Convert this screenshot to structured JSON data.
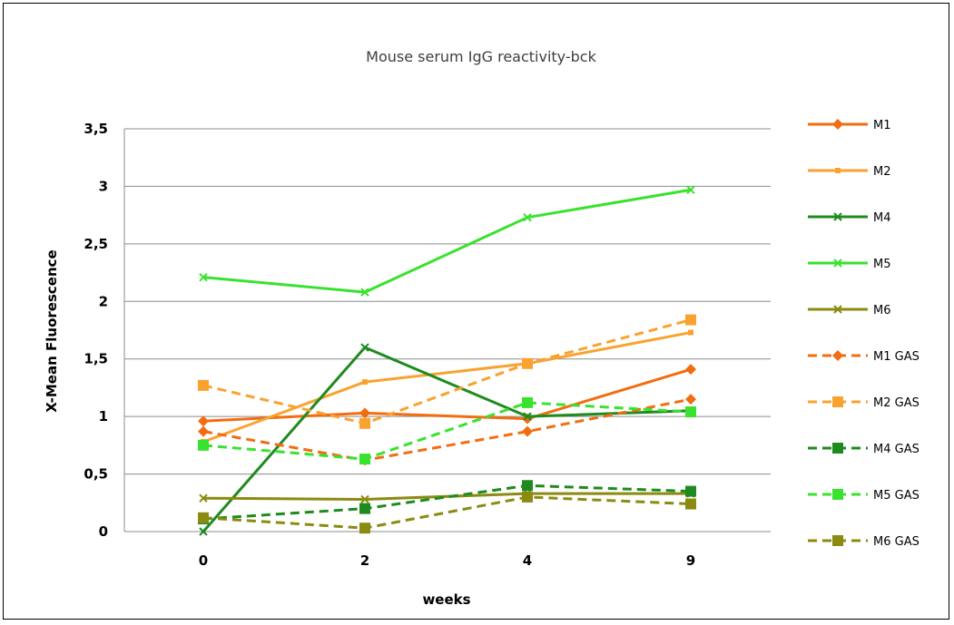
{
  "chart_data": {
    "type": "line",
    "title": "Mouse serum IgG reactivity-bck",
    "xlabel": "weeks",
    "ylabel": "X-Mean Fluorescence",
    "categories": [
      "0",
      "2",
      "4",
      "9"
    ],
    "ylim": [
      0,
      3.5
    ],
    "yticks": [
      "0",
      "0,5",
      "1",
      "1,5",
      "2",
      "2,5",
      "3",
      "3,5"
    ],
    "grid": true,
    "legend": "right",
    "series": [
      {
        "name": "M1",
        "values": [
          0.96,
          1.03,
          0.98,
          1.41
        ],
        "color": "#F26D12",
        "dash": "solid",
        "marker": "diamond"
      },
      {
        "name": "M2",
        "values": [
          0.78,
          1.3,
          1.46,
          1.73
        ],
        "color": "#F9A230",
        "dash": "solid",
        "marker": "square-small"
      },
      {
        "name": "M4",
        "values": [
          0.0,
          1.6,
          1.0,
          1.05
        ],
        "color": "#1E8B1E",
        "dash": "solid",
        "marker": "x"
      },
      {
        "name": "M5",
        "values": [
          2.21,
          2.08,
          2.73,
          2.97
        ],
        "color": "#39E22E",
        "dash": "solid",
        "marker": "x"
      },
      {
        "name": "M6",
        "values": [
          0.29,
          0.28,
          0.33,
          0.33
        ],
        "color": "#8B8B12",
        "dash": "solid",
        "marker": "x"
      },
      {
        "name": "M1 GAS",
        "values": [
          0.87,
          0.62,
          0.87,
          1.15
        ],
        "color": "#F26D12",
        "dash": "dashed",
        "marker": "diamond"
      },
      {
        "name": "M2 GAS",
        "values": [
          1.27,
          0.94,
          1.46,
          1.84
        ],
        "color": "#F9A230",
        "dash": "dashed",
        "marker": "square"
      },
      {
        "name": "M4 GAS",
        "values": [
          0.11,
          0.2,
          0.4,
          0.35
        ],
        "color": "#1E8B1E",
        "dash": "dashed",
        "marker": "square"
      },
      {
        "name": "M5 GAS",
        "values": [
          0.75,
          0.63,
          1.12,
          1.04
        ],
        "color": "#39E22E",
        "dash": "dashed",
        "marker": "square"
      },
      {
        "name": "M6 GAS",
        "values": [
          0.12,
          0.03,
          0.3,
          0.24
        ],
        "color": "#8B8B12",
        "dash": "dashed",
        "marker": "square"
      }
    ]
  }
}
